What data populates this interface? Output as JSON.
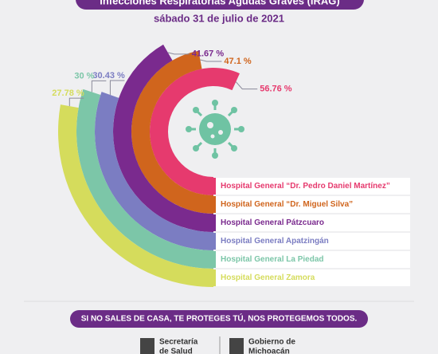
{
  "header": {
    "title": "Infecciones Respiratorias Agudas Graves (IRAG)",
    "subtitle": "sábado 31 de julio de 2021"
  },
  "chart_data": {
    "type": "radial-bar",
    "categories": [
      "Hospital General “Dr. Pedro Daniel Martínez”",
      "Hospital General “Dr. Miguel Silva”",
      "Hospital General Pátzcuaro",
      "Hospital General Apatzingán",
      "Hospital General La Piedad",
      "Hospital General Zamora"
    ],
    "values": [
      56.76,
      47.1,
      41.67,
      30.43,
      30,
      27.78
    ],
    "value_labels": [
      "56.76 %",
      "47.1 %",
      "41.67 %",
      "30.43 %",
      "30 %",
      "27.78 %"
    ],
    "colors": [
      "#e63a6e",
      "#d0651d",
      "#7a2a8e",
      "#7b7dc2",
      "#7cc6a8",
      "#d5dc5c"
    ],
    "ylim": [
      0,
      100
    ]
  },
  "footer": {
    "slogan": "SI NO SALES DE CASA, TE PROTEGES TÚ, NOS PROTEGEMOS TODOS.",
    "logo_left": [
      "Secretaría",
      "de Salud"
    ],
    "logo_right": [
      "Gobierno de",
      "Michoacán"
    ]
  }
}
